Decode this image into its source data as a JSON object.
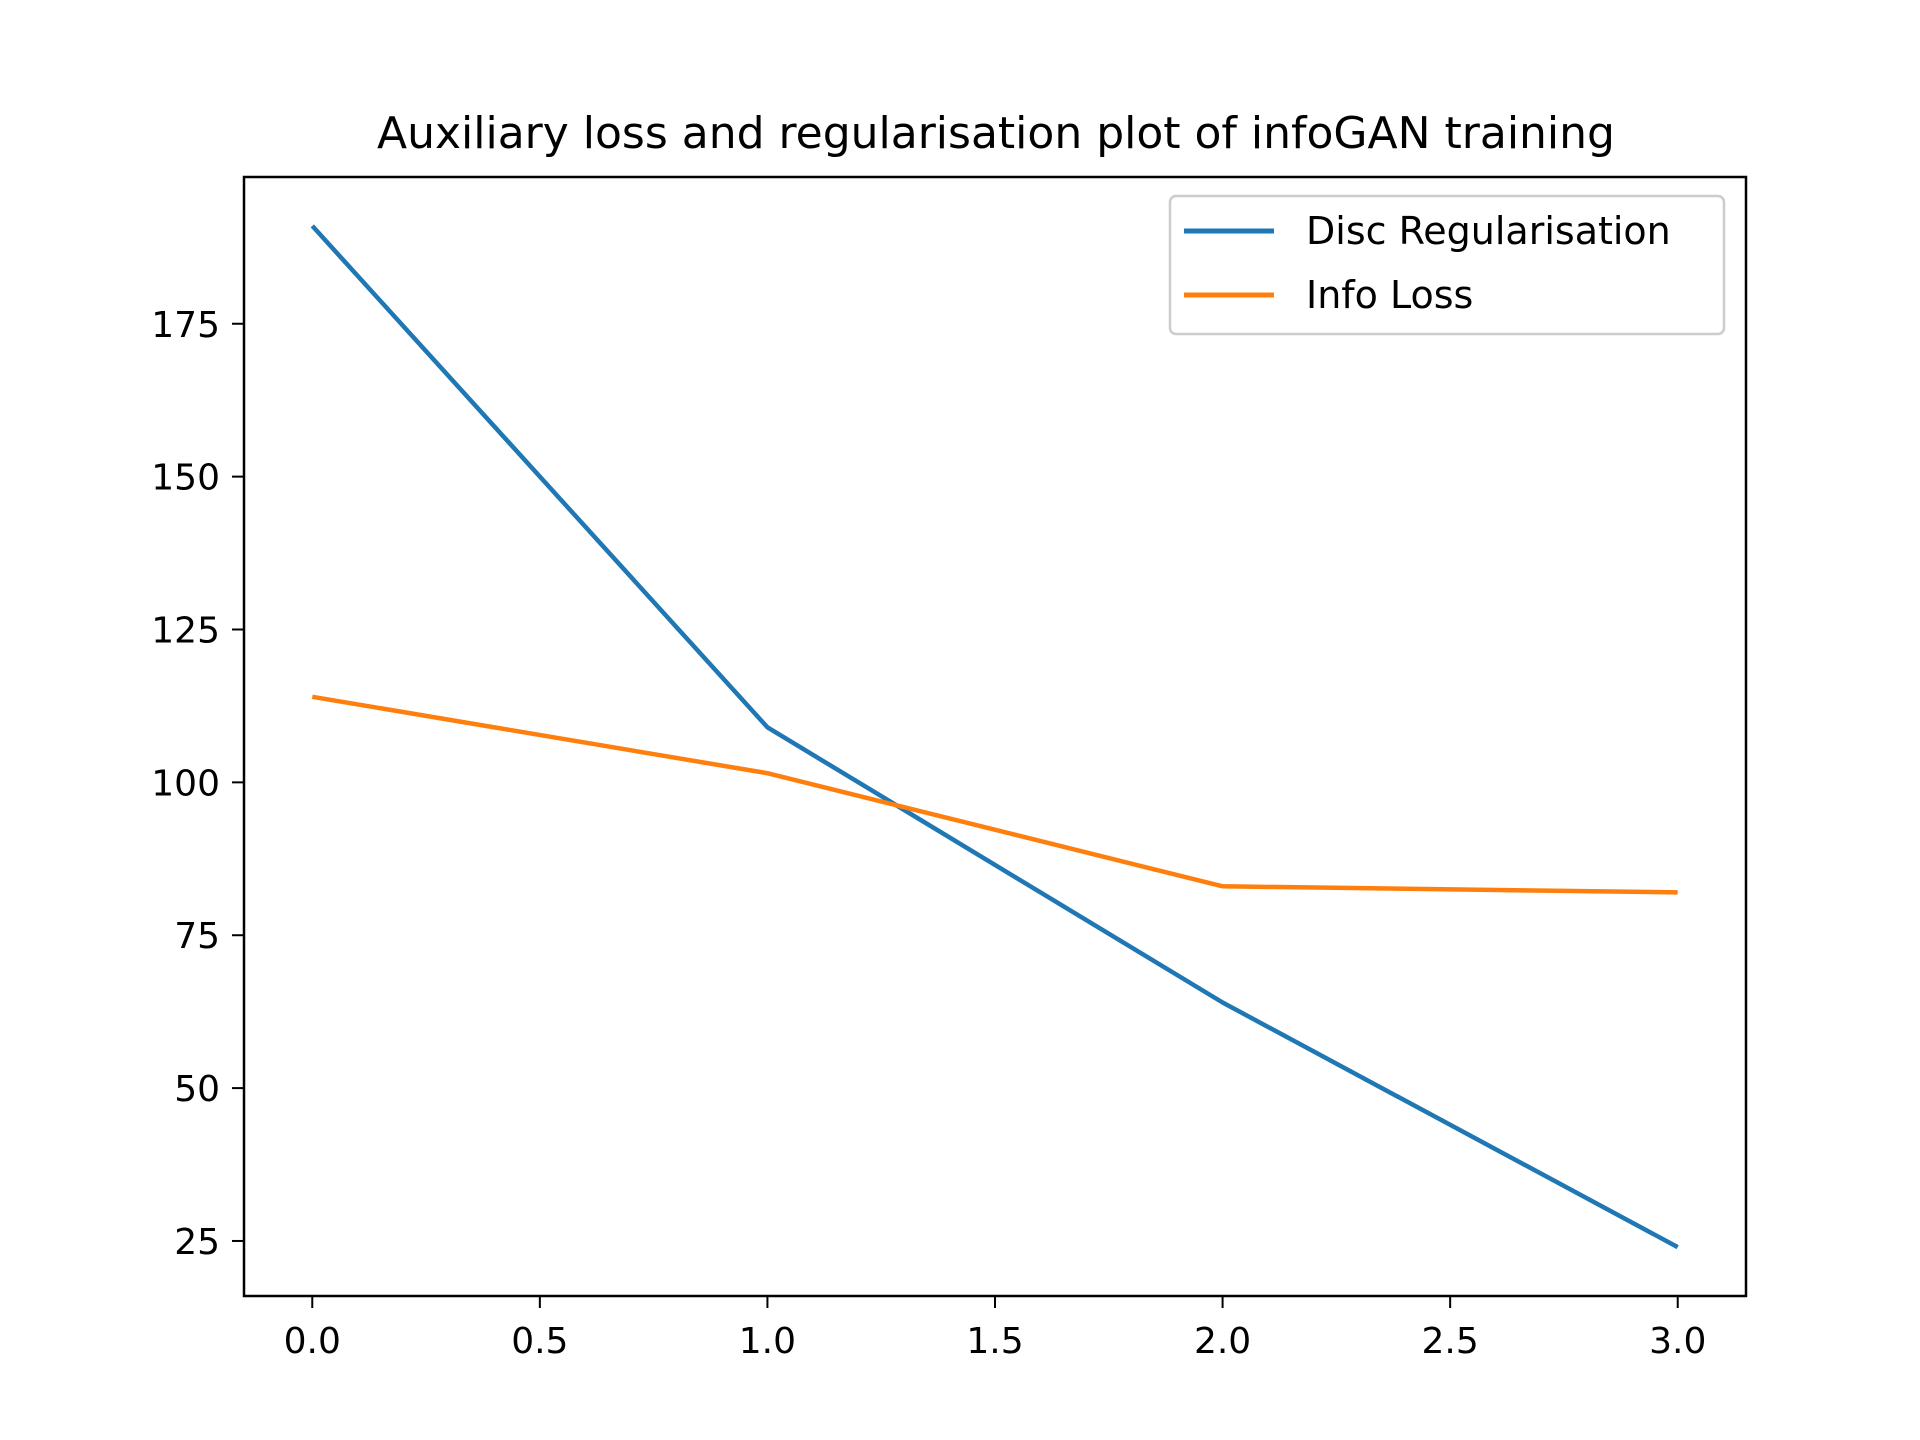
{
  "chart_data": {
    "type": "line",
    "title": "Auxiliary loss and regularisation plot of infoGAN training",
    "xlabel": "",
    "ylabel": "",
    "x": [
      0,
      1,
      2,
      3
    ],
    "xlim": [
      -0.15,
      3.15
    ],
    "ylim": [
      16,
      199
    ],
    "xticks": [
      "0.0",
      "0.5",
      "1.0",
      "1.5",
      "2.0",
      "2.5",
      "3.0"
    ],
    "xtick_values": [
      0,
      0.5,
      1.0,
      1.5,
      2.0,
      2.5,
      3.0
    ],
    "yticks": [
      "25",
      "50",
      "75",
      "100",
      "125",
      "150",
      "175"
    ],
    "ytick_values": [
      25,
      50,
      75,
      100,
      125,
      150,
      175
    ],
    "grid": false,
    "legend_position": "top-right",
    "series": [
      {
        "name": "Disc Regularisation",
        "color": "#1f77b4",
        "values": [
          191,
          109,
          64,
          24
        ]
      },
      {
        "name": "Info Loss",
        "color": "#ff7f0e",
        "values": [
          114,
          101.5,
          83,
          82
        ]
      }
    ]
  }
}
